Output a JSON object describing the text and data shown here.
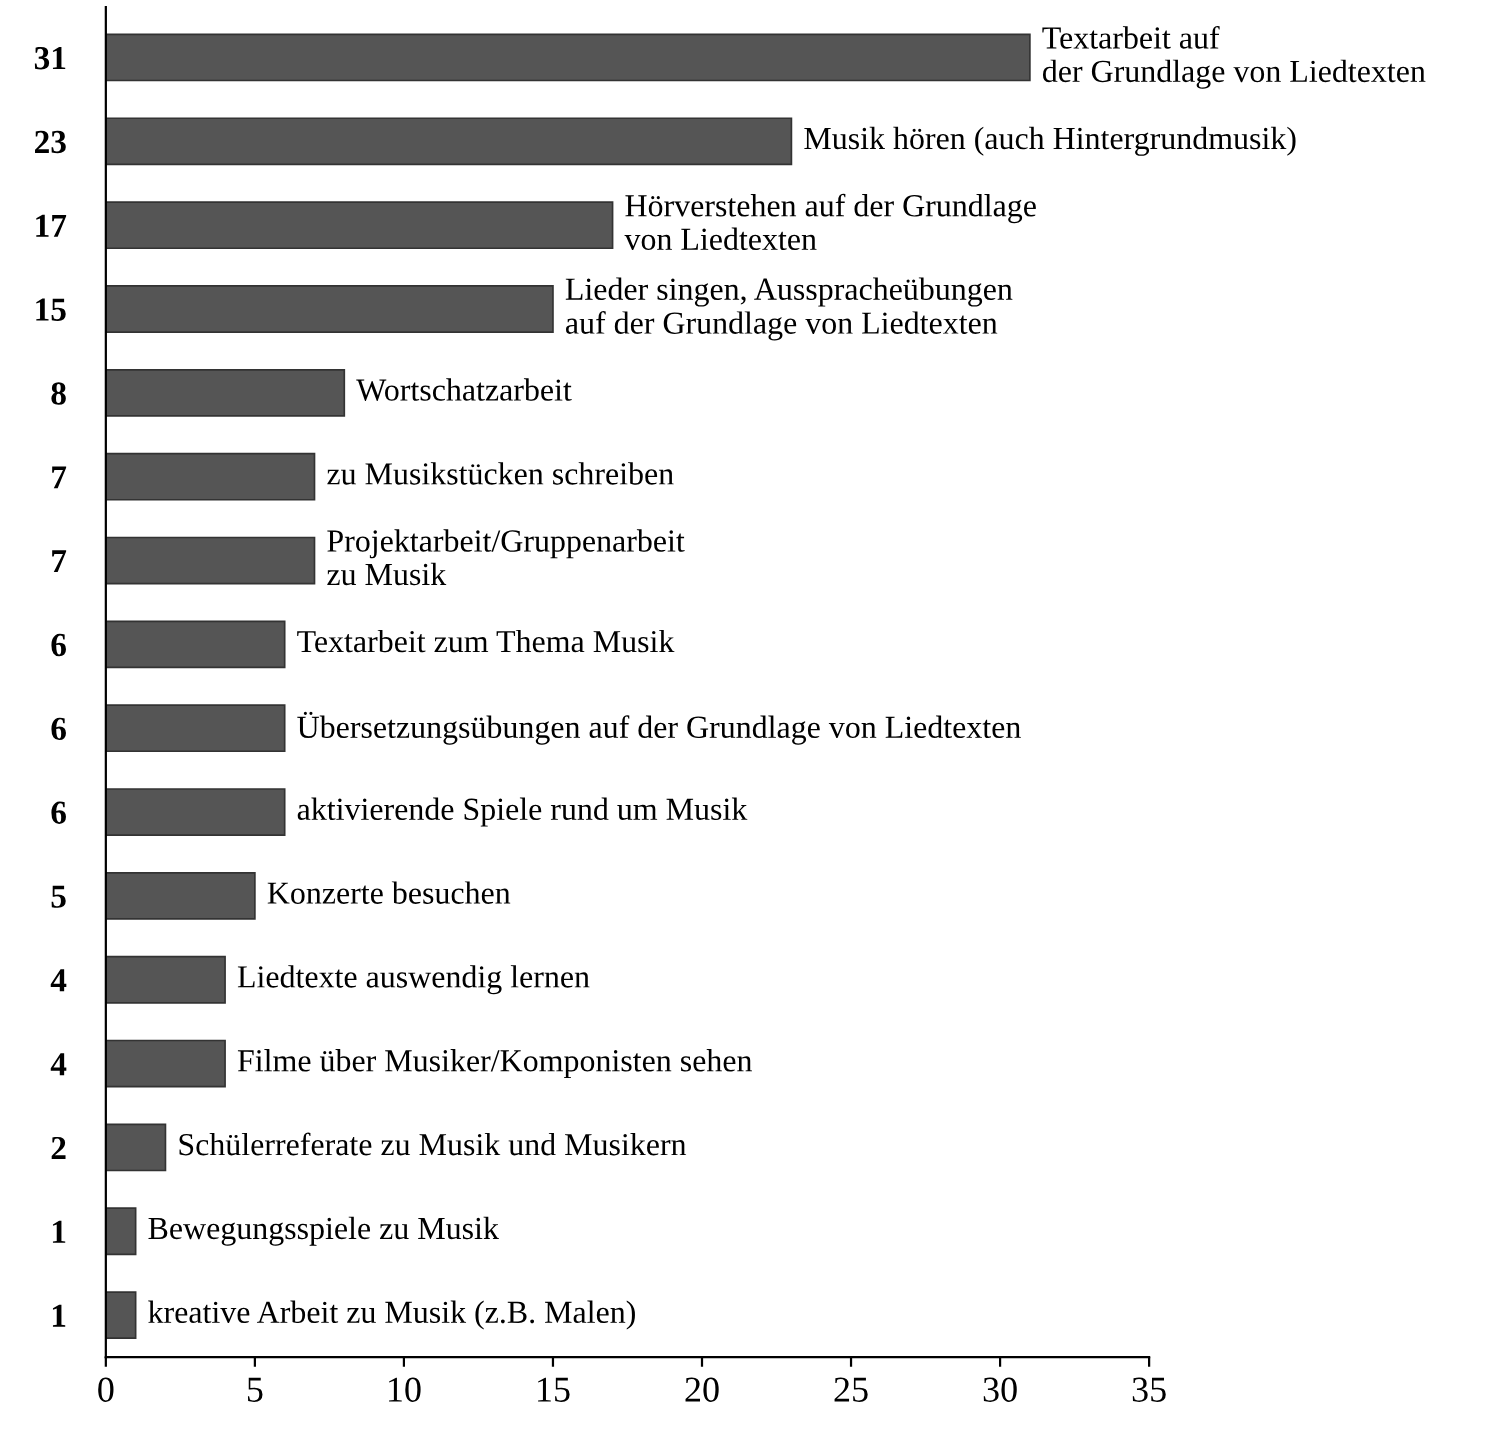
{
  "chart_data": {
    "type": "bar",
    "orientation": "horizontal",
    "categories": [
      "Textarbeit auf\nder Grundlage von Liedtexten",
      "Musik hören (auch Hintergrundmusik)",
      "Hörverstehen auf der Grundlage\nvon Liedtexten",
      "Lieder singen, Ausspracheübungen\nauf der Grundlage von Liedtexten",
      "Wortschatzarbeit",
      "zu Musikstücken schreiben",
      "Projektarbeit/Gruppenarbeit\nzu Musik",
      "Textarbeit zum Thema Musik",
      "Übersetzungsübungen auf der Grundlage von Liedtexten",
      "aktivierende Spiele rund um Musik",
      "Konzerte besuchen",
      "Liedtexte auswendig lernen",
      "Filme über Musiker/Komponisten sehen",
      "Schülerreferate zu Musik und Musikern",
      "Bewegungsspiele zu Musik",
      "kreative Arbeit zu Musik (z.B. Malen)"
    ],
    "values": [
      31,
      23,
      17,
      15,
      8,
      7,
      7,
      6,
      6,
      6,
      5,
      4,
      4,
      2,
      1,
      1
    ],
    "color": "#555555",
    "xlim": [
      0,
      35
    ],
    "xticks": [
      0,
      5,
      10,
      15,
      20,
      25,
      30,
      35
    ],
    "data_labels": true,
    "grid": false
  }
}
